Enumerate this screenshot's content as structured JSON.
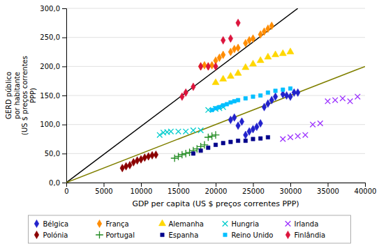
{
  "chart_data": {
    "type": "scatter",
    "xlabel": "GDP per capita (US $ preços correntes PPP)",
    "ylabel": "GERD público\npor habitante\n(US $ preços correntes\nPPP)",
    "xlim": [
      0,
      40000
    ],
    "ylim": [
      0,
      300
    ],
    "xticks": [
      0,
      5000,
      10000,
      15000,
      20000,
      25000,
      30000,
      35000,
      40000
    ],
    "yticks": [
      {
        "value": 0.0,
        "label": "0,0"
      },
      {
        "value": 50.0,
        "label": "50,0"
      },
      {
        "value": 100.0,
        "label": "100,0"
      },
      {
        "value": 150.0,
        "label": "150,0"
      },
      {
        "value": 200.0,
        "label": "200,0"
      },
      {
        "value": 250.0,
        "label": "250,0"
      },
      {
        "value": 300.0,
        "label": "300,0"
      }
    ],
    "grid": true,
    "legend": "bottom",
    "series": [
      {
        "type": "line",
        "color": "#000000",
        "x": [
          0,
          31000
        ],
        "values": [
          0,
          300
        ]
      },
      {
        "type": "line",
        "color": "#808000",
        "x": [
          0,
          40000
        ],
        "values": [
          0,
          200
        ]
      },
      {
        "name": "Bélgica",
        "color": "#2222CC",
        "marker": "diamond",
        "x": [
          22000,
          22500,
          23000,
          23500,
          24000,
          24500,
          25000,
          25500,
          26000,
          26500,
          27000,
          27500,
          28000,
          29000,
          29500,
          30000,
          30500,
          31000
        ],
        "values": [
          108,
          112,
          98,
          105,
          82,
          88,
          92,
          96,
          102,
          130,
          136,
          142,
          148,
          152,
          150,
          148,
          155,
          155
        ]
      },
      {
        "name": "França",
        "color": "#FF8C00",
        "marker": "diamond",
        "x": [
          18000,
          18500,
          19000,
          19500,
          20000,
          20500,
          21000,
          22000,
          22500,
          23000,
          24000,
          24500,
          25000,
          26000,
          26500,
          27000,
          27500
        ],
        "values": [
          200,
          202,
          200,
          202,
          210,
          215,
          220,
          225,
          230,
          232,
          240,
          245,
          248,
          255,
          260,
          265,
          270
        ]
      },
      {
        "name": "Alemanha",
        "color": "#FFD700",
        "marker": "triangle",
        "x": [
          20000,
          21000,
          22000,
          23000,
          24000,
          25000,
          26000,
          27000,
          28000,
          29000,
          30000
        ],
        "values": [
          172,
          178,
          183,
          188,
          198,
          204,
          210,
          216,
          220,
          222,
          225
        ]
      },
      {
        "name": "Hungria",
        "color": "#00CCCC",
        "marker": "x",
        "x": [
          12500,
          13000,
          13500,
          14000,
          15000,
          16000,
          17000,
          18000,
          19000,
          20000,
          20500,
          21000
        ],
        "values": [
          82,
          86,
          87,
          88,
          88,
          88,
          90,
          90,
          125,
          127,
          128,
          130
        ]
      },
      {
        "name": "Irlanda",
        "color": "#9B30FF",
        "marker": "x",
        "x": [
          29000,
          30000,
          31000,
          32000,
          33000,
          34000,
          35000,
          36000,
          37000,
          38000,
          39000
        ],
        "values": [
          75,
          78,
          80,
          82,
          100,
          102,
          140,
          142,
          145,
          140,
          148
        ]
      },
      {
        "name": "Polónia",
        "color": "#8B0000",
        "marker": "diamond",
        "x": [
          7500,
          8000,
          8500,
          9000,
          9500,
          10000,
          10500,
          11000,
          11500,
          12000
        ],
        "values": [
          25,
          28,
          30,
          35,
          38,
          40,
          43,
          45,
          47,
          48
        ]
      },
      {
        "name": "Portugal",
        "color": "#228B22",
        "marker": "plus",
        "x": [
          14500,
          15000,
          15500,
          16000,
          16500,
          17000,
          17500,
          18000,
          18500,
          19000,
          19500,
          20000
        ],
        "values": [
          42,
          45,
          48,
          50,
          52,
          55,
          58,
          62,
          65,
          78,
          80,
          82
        ]
      },
      {
        "name": "Espanha",
        "color": "#00008B",
        "marker": "square",
        "x": [
          17000,
          18000,
          19000,
          20000,
          21000,
          22000,
          23000,
          24000,
          25000,
          26000,
          27000
        ],
        "values": [
          50,
          55,
          60,
          65,
          68,
          70,
          72,
          72,
          75,
          76,
          78
        ]
      },
      {
        "name": "Reino Unido",
        "color": "#00BFFF",
        "marker": "square",
        "x": [
          19500,
          20000,
          20500,
          21000,
          21500,
          22000,
          22500,
          23000,
          24000,
          25000,
          26000,
          27000,
          28000,
          29000,
          30000
        ],
        "values": [
          125,
          128,
          130,
          133,
          135,
          138,
          140,
          142,
          145,
          148,
          150,
          155,
          158,
          160,
          162
        ]
      },
      {
        "name": "Finlândia",
        "color": "#DC143C",
        "marker": "diamond",
        "x": [
          15500,
          16000,
          17000,
          18000,
          19000,
          20000,
          21000,
          22000,
          23000
        ],
        "values": [
          148,
          155,
          165,
          200,
          200,
          200,
          245,
          248,
          275
        ]
      }
    ]
  }
}
